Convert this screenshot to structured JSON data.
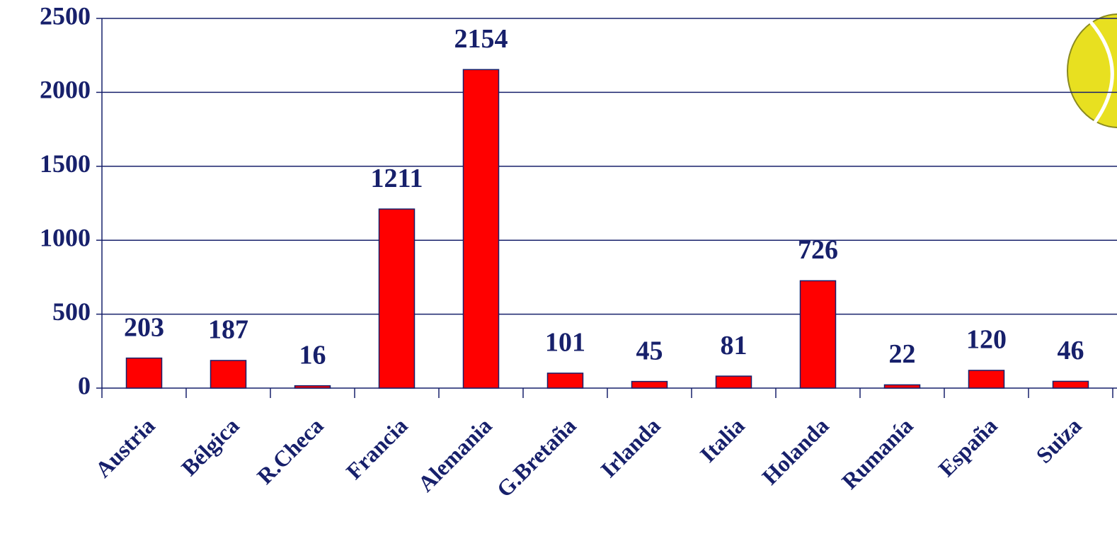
{
  "chart_data": {
    "type": "bar",
    "categories": [
      "Austria",
      "Bélgica",
      "R.Checa",
      "Francia",
      "Alemania",
      "G.Bretaña",
      "Irlanda",
      "Italia",
      "Holanda",
      "Rumanía",
      "España",
      "Suiza"
    ],
    "values": [
      203,
      187,
      16,
      1211,
      2154,
      101,
      45,
      81,
      726,
      22,
      120,
      46
    ],
    "color": "#ff0000",
    "ylim": [
      0,
      2500
    ],
    "yticks": [
      0,
      500,
      1000,
      1500,
      2000,
      2500
    ],
    "grid": true
  }
}
